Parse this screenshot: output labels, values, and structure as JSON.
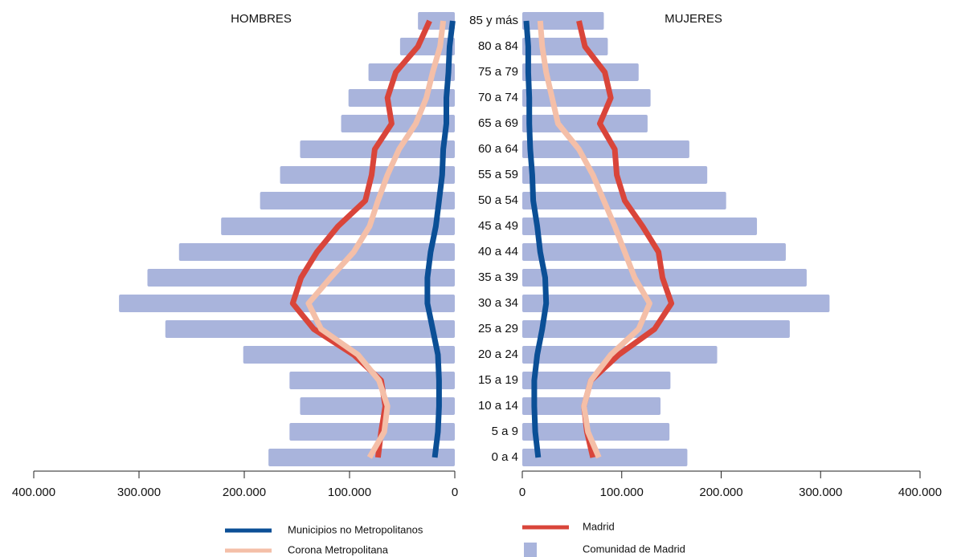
{
  "chart_data": {
    "type": "pyramid",
    "sides": [
      "HOMBRES",
      "MUJERES"
    ],
    "categories": [
      "0 a 4",
      "5 a 9",
      "10 a 14",
      "15 a 19",
      "20 a 24",
      "25 a 29",
      "30 a 34",
      "35 a 39",
      "40 a 44",
      "45 a 49",
      "50 a 54",
      "55 a 59",
      "60 a 64",
      "65 a 69",
      "70 a 74",
      "75 a 79",
      "80 a 84",
      "85 y más"
    ],
    "xlim": [
      0,
      400000
    ],
    "xticks": [
      0,
      {
        "value": 100000,
        "label": "100.000"
      },
      {
        "value": 200000,
        "label": "200.000"
      },
      {
        "value": 300000,
        "label": "300.000"
      },
      {
        "value": 400000,
        "label": "400.000"
      }
    ],
    "series": [
      {
        "name": "Comunidad de Madrid",
        "color": "#a9b4dc",
        "mark": "bar",
        "values": [
          [
            177000,
            157000,
            147000,
            157000,
            201000,
            275000,
            319000,
            292000,
            262000,
            222000,
            185000,
            166000,
            147000,
            108000,
            101000,
            82000,
            52000,
            35000
          ],
          [
            166000,
            148000,
            139000,
            149000,
            196000,
            269000,
            309000,
            286000,
            265000,
            236000,
            205000,
            186000,
            168000,
            126000,
            129000,
            117000,
            86000,
            82000
          ]
        ]
      },
      {
        "name": "Madrid",
        "color": "#d9453a",
        "mark": "line",
        "values": [
          [
            73000,
            70000,
            66000,
            70000,
            96000,
            134000,
            154000,
            146000,
            131000,
            111000,
            85000,
            79000,
            76000,
            60000,
            64000,
            56000,
            35000,
            24000
          ],
          [
            71000,
            65000,
            62000,
            69000,
            97000,
            133000,
            150000,
            141000,
            137000,
            121000,
            103000,
            95000,
            93000,
            78000,
            89000,
            83000,
            63000,
            57000
          ]
        ]
      },
      {
        "name": "Corona Metropolitana",
        "color": "#f4bfa8",
        "mark": "line",
        "values": [
          [
            81000,
            67000,
            64000,
            72000,
            92000,
            127000,
            139000,
            118000,
            96000,
            81000,
            73000,
            64000,
            53000,
            37000,
            27000,
            21000,
            14000,
            11000
          ],
          [
            77000,
            66000,
            62000,
            69000,
            89000,
            117000,
            128000,
            113000,
            103000,
            93000,
            82000,
            71000,
            57000,
            36000,
            30000,
            24000,
            20000,
            18000
          ]
        ]
      },
      {
        "name": "Municipios no Metropolitanos",
        "color": "#0b4f96",
        "mark": "line",
        "values": [
          [
            19000,
            16000,
            15000,
            15000,
            16000,
            21000,
            26000,
            26000,
            23000,
            18000,
            15000,
            12000,
            11000,
            8000,
            8000,
            6000,
            5000,
            2000
          ],
          [
            16000,
            13000,
            12000,
            12000,
            15000,
            20000,
            24000,
            23000,
            18000,
            15000,
            11000,
            10000,
            8000,
            7000,
            7000,
            6000,
            6000,
            4000
          ]
        ]
      }
    ]
  }
}
